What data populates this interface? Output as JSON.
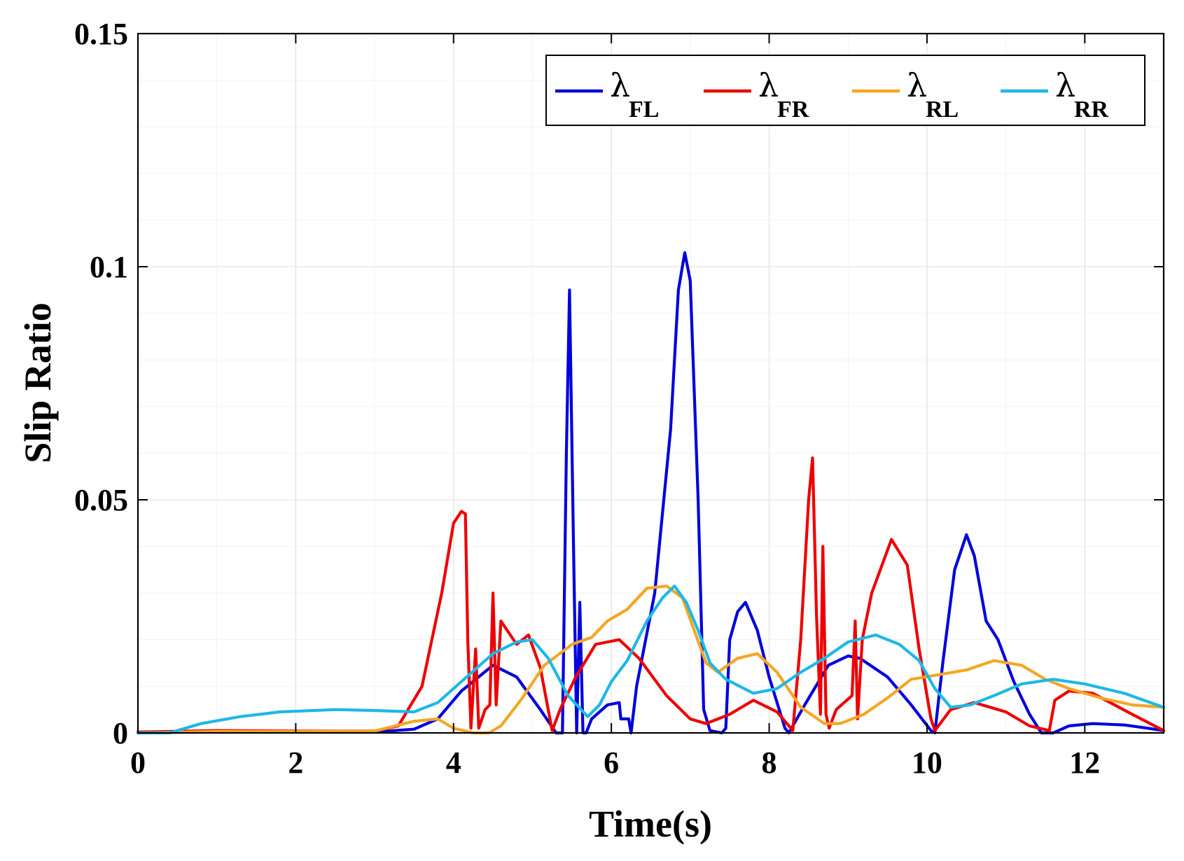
{
  "chart_data": {
    "type": "line",
    "title": "",
    "xlabel": "Time(s)",
    "ylabel": "Slip Ratio",
    "xlim": [
      0,
      13
    ],
    "ylim": [
      0,
      0.15
    ],
    "xticks": [
      0,
      2,
      4,
      6,
      8,
      10,
      12
    ],
    "xtick_labels": [
      "0",
      "2",
      "4",
      "6",
      "8",
      "10",
      "12"
    ],
    "yticks": [
      0,
      0.05,
      0.1,
      0.15
    ],
    "ytick_labels": [
      "0",
      "0.05",
      "0.1",
      "0.15"
    ],
    "grid": true,
    "legend_position": "top-right",
    "series": [
      {
        "name": "λFL",
        "symbol": "λ",
        "subscript": "FL",
        "color": "#0000dd",
        "points": [
          [
            0,
            0
          ],
          [
            1,
            0.0003
          ],
          [
            2,
            0.0002
          ],
          [
            3,
            0.0002
          ],
          [
            3.5,
            0.0008
          ],
          [
            3.8,
            0.003
          ],
          [
            4.1,
            0.009
          ],
          [
            4.5,
            0.0145
          ],
          [
            4.8,
            0.012
          ],
          [
            5.1,
            0.005
          ],
          [
            5.3,
            0
          ],
          [
            5.38,
            0
          ],
          [
            5.43,
            0.06
          ],
          [
            5.47,
            0.095
          ],
          [
            5.52,
            0.04
          ],
          [
            5.56,
            0
          ],
          [
            5.6,
            0.028
          ],
          [
            5.64,
            0
          ],
          [
            5.68,
            0
          ],
          [
            5.75,
            0.003
          ],
          [
            5.95,
            0.006
          ],
          [
            6.1,
            0.0065
          ],
          [
            6.12,
            0.003
          ],
          [
            6.22,
            0.003
          ],
          [
            6.25,
            0
          ],
          [
            6.32,
            0.01
          ],
          [
            6.55,
            0.03
          ],
          [
            6.75,
            0.065
          ],
          [
            6.85,
            0.095
          ],
          [
            6.93,
            0.103
          ],
          [
            7.0,
            0.097
          ],
          [
            7.1,
            0.05
          ],
          [
            7.17,
            0.005
          ],
          [
            7.25,
            0.0005
          ],
          [
            7.4,
            0
          ],
          [
            7.45,
            0.001
          ],
          [
            7.5,
            0.02
          ],
          [
            7.6,
            0.026
          ],
          [
            7.7,
            0.028
          ],
          [
            7.85,
            0.022
          ],
          [
            8.0,
            0.012
          ],
          [
            8.2,
            0.001
          ],
          [
            8.25,
            0
          ],
          [
            8.45,
            0.006
          ],
          [
            8.75,
            0.0145
          ],
          [
            9.0,
            0.0165
          ],
          [
            9.15,
            0.016
          ],
          [
            9.5,
            0.012
          ],
          [
            9.8,
            0.006
          ],
          [
            10.05,
            0.0005
          ],
          [
            10.1,
            0
          ],
          [
            10.2,
            0.015
          ],
          [
            10.35,
            0.035
          ],
          [
            10.5,
            0.0425
          ],
          [
            10.6,
            0.038
          ],
          [
            10.75,
            0.024
          ],
          [
            10.9,
            0.02
          ],
          [
            11.1,
            0.011
          ],
          [
            11.3,
            0.004
          ],
          [
            11.45,
            0
          ],
          [
            11.6,
            0
          ],
          [
            11.8,
            0.0015
          ],
          [
            12.1,
            0.002
          ],
          [
            12.5,
            0.0017
          ],
          [
            12.8,
            0.001
          ],
          [
            13.0,
            0.0005
          ]
        ]
      },
      {
        "name": "λFR",
        "symbol": "λ",
        "subscript": "FR",
        "color": "#ee0000",
        "points": [
          [
            0,
            0.0002
          ],
          [
            1,
            0.0005
          ],
          [
            2,
            0.0004
          ],
          [
            3,
            0.0004
          ],
          [
            3.3,
            0.0015
          ],
          [
            3.6,
            0.01
          ],
          [
            3.85,
            0.03
          ],
          [
            4.0,
            0.045
          ],
          [
            4.1,
            0.0475
          ],
          [
            4.15,
            0.047
          ],
          [
            4.18,
            0.02
          ],
          [
            4.22,
            0.001
          ],
          [
            4.28,
            0.018
          ],
          [
            4.32,
            0.001
          ],
          [
            4.4,
            0.005
          ],
          [
            4.46,
            0.006
          ],
          [
            4.5,
            0.03
          ],
          [
            4.54,
            0.006
          ],
          [
            4.6,
            0.024
          ],
          [
            4.8,
            0.019
          ],
          [
            4.95,
            0.021
          ],
          [
            5.1,
            0.014
          ],
          [
            5.25,
            0.0005
          ],
          [
            5.35,
            0.005
          ],
          [
            5.55,
            0.012
          ],
          [
            5.8,
            0.019
          ],
          [
            6.1,
            0.02
          ],
          [
            6.35,
            0.016
          ],
          [
            6.7,
            0.008
          ],
          [
            7.0,
            0.003
          ],
          [
            7.2,
            0.002
          ],
          [
            7.5,
            0.004
          ],
          [
            7.8,
            0.007
          ],
          [
            8.1,
            0.0045
          ],
          [
            8.3,
            0.0005
          ],
          [
            8.4,
            0.02
          ],
          [
            8.5,
            0.05
          ],
          [
            8.55,
            0.059
          ],
          [
            8.6,
            0.025
          ],
          [
            8.65,
            0.004
          ],
          [
            8.68,
            0.04
          ],
          [
            8.72,
            0.004
          ],
          [
            8.76,
            0.001
          ],
          [
            8.85,
            0.005
          ],
          [
            9.05,
            0.008
          ],
          [
            9.09,
            0.024
          ],
          [
            9.12,
            0.003
          ],
          [
            9.18,
            0.02
          ],
          [
            9.3,
            0.03
          ],
          [
            9.55,
            0.0415
          ],
          [
            9.75,
            0.036
          ],
          [
            9.9,
            0.018
          ],
          [
            10.05,
            0.003
          ],
          [
            10.1,
            0.0005
          ],
          [
            10.3,
            0.005
          ],
          [
            10.6,
            0.0065
          ],
          [
            11.0,
            0.0045
          ],
          [
            11.3,
            0.0015
          ],
          [
            11.55,
            0.0005
          ],
          [
            11.62,
            0.007
          ],
          [
            11.8,
            0.009
          ],
          [
            12.1,
            0.0085
          ],
          [
            12.6,
            0.004
          ],
          [
            13.0,
            0.0005
          ]
        ]
      },
      {
        "name": "λRL",
        "symbol": "λ",
        "subscript": "RL",
        "color": "#f5a623",
        "points": [
          [
            0,
            0
          ],
          [
            1,
            0.0003
          ],
          [
            2,
            0.0003
          ],
          [
            3,
            0.0004
          ],
          [
            3.5,
            0.0025
          ],
          [
            3.8,
            0.003
          ],
          [
            4.0,
            0.001
          ],
          [
            4.25,
            0
          ],
          [
            4.45,
            0
          ],
          [
            4.6,
            0.0015
          ],
          [
            4.85,
            0.007
          ],
          [
            5.15,
            0.0145
          ],
          [
            5.5,
            0.019
          ],
          [
            5.75,
            0.0205
          ],
          [
            5.95,
            0.024
          ],
          [
            6.2,
            0.0265
          ],
          [
            6.45,
            0.031
          ],
          [
            6.7,
            0.0315
          ],
          [
            6.9,
            0.029
          ],
          [
            7.05,
            0.022
          ],
          [
            7.2,
            0.015
          ],
          [
            7.35,
            0.013
          ],
          [
            7.6,
            0.016
          ],
          [
            7.85,
            0.017
          ],
          [
            8.1,
            0.013
          ],
          [
            8.4,
            0.0055
          ],
          [
            8.7,
            0.002
          ],
          [
            8.9,
            0.002
          ],
          [
            9.2,
            0.004
          ],
          [
            9.5,
            0.0075
          ],
          [
            9.8,
            0.0115
          ],
          [
            10.15,
            0.0125
          ],
          [
            10.5,
            0.0135
          ],
          [
            10.85,
            0.0155
          ],
          [
            11.2,
            0.0145
          ],
          [
            11.5,
            0.0115
          ],
          [
            11.8,
            0.0095
          ],
          [
            12.2,
            0.0075
          ],
          [
            12.6,
            0.006
          ],
          [
            13.0,
            0.0055
          ]
        ]
      },
      {
        "name": "λRR",
        "symbol": "λ",
        "subscript": "RR",
        "color": "#1eb8e6",
        "points": [
          [
            0,
            0
          ],
          [
            0.4,
            0
          ],
          [
            0.8,
            0.002
          ],
          [
            1.3,
            0.0035
          ],
          [
            1.8,
            0.0045
          ],
          [
            2.5,
            0.005
          ],
          [
            3.0,
            0.0048
          ],
          [
            3.5,
            0.0045
          ],
          [
            3.8,
            0.0065
          ],
          [
            4.1,
            0.011
          ],
          [
            4.5,
            0.017
          ],
          [
            4.8,
            0.0195
          ],
          [
            5.0,
            0.02
          ],
          [
            5.2,
            0.016
          ],
          [
            5.45,
            0.008
          ],
          [
            5.7,
            0.0035
          ],
          [
            5.85,
            0.006
          ],
          [
            6.0,
            0.011
          ],
          [
            6.2,
            0.0155
          ],
          [
            6.45,
            0.024
          ],
          [
            6.65,
            0.029
          ],
          [
            6.8,
            0.0315
          ],
          [
            6.95,
            0.028
          ],
          [
            7.1,
            0.022
          ],
          [
            7.25,
            0.015
          ],
          [
            7.45,
            0.0115
          ],
          [
            7.8,
            0.0085
          ],
          [
            8.1,
            0.0095
          ],
          [
            8.4,
            0.013
          ],
          [
            8.7,
            0.016
          ],
          [
            9.0,
            0.0195
          ],
          [
            9.35,
            0.021
          ],
          [
            9.65,
            0.019
          ],
          [
            9.9,
            0.0155
          ],
          [
            10.1,
            0.0095
          ],
          [
            10.3,
            0.0055
          ],
          [
            10.55,
            0.006
          ],
          [
            10.85,
            0.008
          ],
          [
            11.2,
            0.0105
          ],
          [
            11.6,
            0.0115
          ],
          [
            12.0,
            0.0105
          ],
          [
            12.5,
            0.0085
          ],
          [
            13.0,
            0.0055
          ]
        ]
      }
    ]
  }
}
